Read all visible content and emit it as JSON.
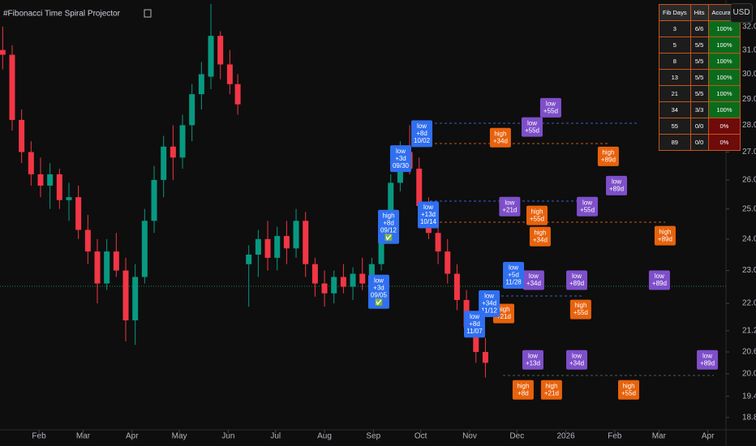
{
  "chart_data": {
    "type": "candlestick",
    "title": "#Fibonacci Time Spiral Projector",
    "currency": "USD",
    "log_scale": true,
    "up_color": "#089981",
    "down_color": "#f23645",
    "xlim": [
      6.3,
      466.5
    ],
    "xticks": [
      {
        "value": 31,
        "label": "Feb"
      },
      {
        "value": 59,
        "label": "Mar"
      },
      {
        "value": 90,
        "label": "Apr"
      },
      {
        "value": 120,
        "label": "May"
      },
      {
        "value": 151,
        "label": "Jun"
      },
      {
        "value": 181,
        "label": "Jul"
      },
      {
        "value": 212,
        "label": "Aug"
      },
      {
        "value": 243,
        "label": "Sep"
      },
      {
        "value": 273,
        "label": "Oct"
      },
      {
        "value": 304,
        "label": "Nov"
      },
      {
        "value": 334,
        "label": "Dec"
      },
      {
        "value": 365,
        "label": "2026"
      },
      {
        "value": 396,
        "label": "Feb"
      },
      {
        "value": 424,
        "label": "Mar"
      },
      {
        "value": 455,
        "label": "Apr"
      }
    ],
    "ylim": [
      18.54,
      33.17
    ],
    "yticks": [
      {
        "value": 32,
        "label": "32.00"
      },
      {
        "value": 31,
        "label": "31.00"
      },
      {
        "value": 30,
        "label": "30.00"
      },
      {
        "value": 29,
        "label": "29.00"
      },
      {
        "value": 28,
        "label": "28.00"
      },
      {
        "value": 27,
        "label": "27.00"
      },
      {
        "value": 26,
        "label": "26.00"
      },
      {
        "value": 25,
        "label": "25.00"
      },
      {
        "value": 24,
        "label": "24.00"
      },
      {
        "value": 23,
        "label": "23.00"
      },
      {
        "value": 22,
        "label": "22.00"
      },
      {
        "value": 21.2,
        "label": "21.20"
      },
      {
        "value": 20.6,
        "label": "20.60"
      },
      {
        "value": 20,
        "label": "20.00"
      },
      {
        "value": 19.4,
        "label": "19.40"
      },
      {
        "value": 18.85,
        "label": "18.85"
      }
    ],
    "x": [
      8,
      14,
      20,
      26,
      32,
      38,
      44,
      50,
      56,
      62,
      68,
      74,
      80,
      86,
      92,
      98,
      104,
      110,
      116,
      122,
      128,
      134,
      140,
      146,
      152,
      157,
      164,
      170,
      176,
      182,
      188,
      194,
      200,
      206,
      212,
      218,
      224,
      230,
      236,
      242,
      248,
      254,
      260,
      266,
      272,
      278,
      284,
      290,
      296,
      302,
      308,
      314
    ],
    "open": [
      31.0,
      30.8,
      28.2,
      27.0,
      26.2,
      25.8,
      26.2,
      25.3,
      25.4,
      24.3,
      23.6,
      22.6,
      23.6,
      23.0,
      21.5,
      22.8,
      24.6,
      26.0,
      27.2,
      26.8,
      28.0,
      29.2,
      29.9,
      31.6,
      30.4,
      29.6,
      23.2,
      23.5,
      24.0,
      23.4,
      24.1,
      23.7,
      24.6,
      23.2,
      22.6,
      22.3,
      22.8,
      22.5,
      22.9,
      22.6,
      23.2,
      24.6,
      25.9,
      27.0,
      26.4,
      25.1,
      24.2,
      23.6,
      22.9,
      22.1,
      21.3,
      20.6
    ],
    "high": [
      32.0,
      31.2,
      28.6,
      27.4,
      26.8,
      26.6,
      26.4,
      25.9,
      25.8,
      24.8,
      24.0,
      24.0,
      24.2,
      23.4,
      23.2,
      25.0,
      26.5,
      27.6,
      28.0,
      28.4,
      29.6,
      30.5,
      33.0,
      31.8,
      31.0,
      30.0,
      23.8,
      24.3,
      24.6,
      24.4,
      24.6,
      25.0,
      24.9,
      23.4,
      23.0,
      23.0,
      23.2,
      23.1,
      23.4,
      23.4,
      24.8,
      26.2,
      27.4,
      28.0,
      26.8,
      25.4,
      24.6,
      24.0,
      23.2,
      22.4,
      21.6,
      21.0
    ],
    "low": [
      30.2,
      27.8,
      26.6,
      25.8,
      25.4,
      25.0,
      25.0,
      24.6,
      24.0,
      23.2,
      22.0,
      22.4,
      22.8,
      20.9,
      20.8,
      22.6,
      24.2,
      25.4,
      26.0,
      26.4,
      27.4,
      28.6,
      29.4,
      29.8,
      29.2,
      28.4,
      21.9,
      22.8,
      23.0,
      23.0,
      23.2,
      23.4,
      22.8,
      22.2,
      21.9,
      22.0,
      22.3,
      22.1,
      22.4,
      22.3,
      23.0,
      24.3,
      25.6,
      26.2,
      24.8,
      24.0,
      23.2,
      22.6,
      21.8,
      21.0,
      20.3,
      19.9
    ],
    "close": [
      30.8,
      28.2,
      27.0,
      26.2,
      25.8,
      26.2,
      25.3,
      25.4,
      24.3,
      23.6,
      22.6,
      23.6,
      23.0,
      21.5,
      22.8,
      24.6,
      26.0,
      27.2,
      26.8,
      28.0,
      29.2,
      30.0,
      31.6,
      30.4,
      29.6,
      28.8,
      23.5,
      24.0,
      23.4,
      24.1,
      23.7,
      24.6,
      23.2,
      22.6,
      22.3,
      22.8,
      22.5,
      22.9,
      22.6,
      23.2,
      24.6,
      25.9,
      27.0,
      26.4,
      25.1,
      24.2,
      23.6,
      22.9,
      22.1,
      21.3,
      20.6,
      20.3
    ],
    "projections": [
      {
        "lines": [
          "high",
          "+34d"
        ],
        "x": 323.5,
        "y": 27.53,
        "color": "#e8620c"
      },
      {
        "lines": [
          "high",
          "+89d"
        ],
        "x": 391.9,
        "y": 26.84,
        "color": "#e8620c"
      },
      {
        "lines": [
          "high",
          "+55d"
        ],
        "x": 346.7,
        "y": 24.78,
        "color": "#e8620c"
      },
      {
        "lines": [
          "high",
          "+34d"
        ],
        "x": 348.7,
        "y": 24.08,
        "color": "#e8620c"
      },
      {
        "lines": [
          "high",
          "+89d"
        ],
        "x": 427.9,
        "y": 24.11,
        "color": "#e8620c"
      },
      {
        "lines": [
          "high",
          "+21d"
        ],
        "x": 325.6,
        "y": 21.7,
        "color": "#e8620c"
      },
      {
        "lines": [
          "high",
          "+55d"
        ],
        "x": 374.4,
        "y": 21.82,
        "color": "#e8620c"
      },
      {
        "lines": [
          "high",
          "+8d"
        ],
        "x": 337.9,
        "y": 19.57,
        "color": "#e8620c"
      },
      {
        "lines": [
          "high",
          "+21d"
        ],
        "x": 355.9,
        "y": 19.57,
        "color": "#e8620c"
      },
      {
        "lines": [
          "high",
          "+55d"
        ],
        "x": 404.8,
        "y": 19.57,
        "color": "#e8620c"
      },
      {
        "lines": [
          "low",
          "+55d"
        ],
        "x": 355.4,
        "y": 28.67,
        "color": "#7e4fc9"
      },
      {
        "lines": [
          "low",
          "+55d"
        ],
        "x": 343.6,
        "y": 27.93,
        "color": "#7e4fc9"
      },
      {
        "lines": [
          "low",
          "+89d"
        ],
        "x": 397.1,
        "y": 25.8,
        "color": "#7e4fc9"
      },
      {
        "lines": [
          "low",
          "+21d"
        ],
        "x": 329.4,
        "y": 25.08,
        "color": "#7e4fc9"
      },
      {
        "lines": [
          "low",
          "+55d"
        ],
        "x": 378.6,
        "y": 25.08,
        "color": "#7e4fc9"
      },
      {
        "lines": [
          "low",
          "+34d"
        ],
        "x": 344.6,
        "y": 22.7,
        "color": "#7e4fc9"
      },
      {
        "lines": [
          "low",
          "+89d"
        ],
        "x": 371.9,
        "y": 22.7,
        "color": "#7e4fc9"
      },
      {
        "lines": [
          "low",
          "+89d"
        ],
        "x": 424.3,
        "y": 22.7,
        "color": "#7e4fc9"
      },
      {
        "lines": [
          "low",
          "+13d"
        ],
        "x": 344.1,
        "y": 20.38,
        "color": "#7e4fc9"
      },
      {
        "lines": [
          "low",
          "+34d"
        ],
        "x": 371.9,
        "y": 20.38,
        "color": "#7e4fc9"
      },
      {
        "lines": [
          "low",
          "+89d"
        ],
        "x": 454.7,
        "y": 20.38,
        "color": "#7e4fc9"
      },
      {
        "lines": [
          "low",
          "+8d",
          "10/02"
        ],
        "x": 273.7,
        "y": 27.68,
        "color": "#2f6ff0"
      },
      {
        "lines": [
          "low",
          "+3d",
          "09/30"
        ],
        "x": 260.3,
        "y": 26.76,
        "color": "#2f6ff0"
      },
      {
        "lines": [
          "low",
          "+13d",
          "10/14"
        ],
        "x": 277.8,
        "y": 24.8,
        "color": "#2f6ff0"
      },
      {
        "lines": [
          "high",
          "+8d",
          "09/12",
          "✅"
        ],
        "x": 252.6,
        "y": 24.4,
        "color": "#2f6ff0"
      },
      {
        "lines": [
          "low",
          "+3d",
          "09/05",
          "✅"
        ],
        "x": 246.4,
        "y": 22.35,
        "color": "#2f6ff0"
      },
      {
        "lines": [
          "low",
          "+5d",
          "11/28"
        ],
        "x": 331.8,
        "y": 22.85,
        "color": "#2f6ff0"
      },
      {
        "lines": [
          "low",
          "+34d",
          "11/12"
        ],
        "x": 316.4,
        "y": 21.99,
        "color": "#2f6ff0"
      },
      {
        "lines": [
          "low",
          "+8d",
          "11/07"
        ],
        "x": 307.1,
        "y": 21.39,
        "color": "#2f6ff0"
      }
    ]
  },
  "table": {
    "header": [
      "Fib Days",
      "Hits",
      "Accuracy"
    ],
    "rows": [
      [
        "3",
        "6/6",
        "100%"
      ],
      [
        "5",
        "5/5",
        "100%"
      ],
      [
        "8",
        "5/5",
        "100%"
      ],
      [
        "13",
        "5/5",
        "100%"
      ],
      [
        "21",
        "5/5",
        "100%"
      ],
      [
        "34",
        "3/3",
        "100%"
      ],
      [
        "55",
        "0/0",
        "0%"
      ],
      [
        "89",
        "0/0",
        "0%"
      ]
    ],
    "accuracy_colors": [
      "#0b6b1c",
      "#0b6b1c",
      "#0b6b1c",
      "#0b6b1c",
      "#0b6b1c",
      "#0b6b1c",
      "#6e0b0b",
      "#6e0b0b"
    ]
  }
}
